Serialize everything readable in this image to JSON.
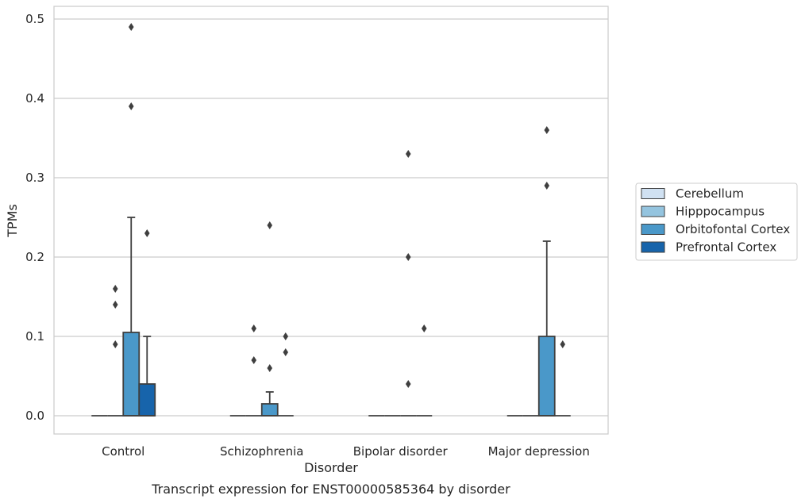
{
  "chart_data": {
    "type": "box",
    "xlabel": "Disorder",
    "ylabel": "TPMs",
    "caption": "Transcript expression for ENST00000585364 by disorder",
    "ylim": [
      -0.024,
      0.515
    ],
    "yticks": [
      "0.0",
      "0.1",
      "0.2",
      "0.3",
      "0.4",
      "0.5"
    ],
    "grid": true,
    "legend_position": "right",
    "categories": [
      "Control",
      "Schizophrenia",
      "Bipolar disorder",
      "Major depression"
    ],
    "series": [
      {
        "name": "Cerebellum",
        "color": "#d0e1f2",
        "boxes": [
          {
            "q1": 0,
            "median": 0,
            "q3": 0,
            "whisker_low": 0,
            "whisker_high": 0,
            "outliers": []
          },
          {
            "q1": 0,
            "median": 0,
            "q3": 0,
            "whisker_low": 0,
            "whisker_high": 0,
            "outliers": []
          },
          {
            "q1": 0,
            "median": 0,
            "q3": 0,
            "whisker_low": 0,
            "whisker_high": 0,
            "outliers": []
          },
          {
            "q1": 0,
            "median": 0,
            "q3": 0,
            "whisker_low": 0,
            "whisker_high": 0,
            "outliers": []
          }
        ]
      },
      {
        "name": "Hipppocampus",
        "color": "#94c4df",
        "boxes": [
          {
            "q1": 0,
            "median": 0,
            "q3": 0,
            "whisker_low": 0,
            "whisker_high": 0,
            "outliers": [
              0.09,
              0.14,
              0.16
            ]
          },
          {
            "q1": 0,
            "median": 0,
            "q3": 0,
            "whisker_low": 0,
            "whisker_high": 0,
            "outliers": [
              0.07,
              0.11
            ]
          },
          {
            "q1": 0,
            "median": 0,
            "q3": 0,
            "whisker_low": 0,
            "whisker_high": 0,
            "outliers": []
          },
          {
            "q1": 0,
            "median": 0,
            "q3": 0,
            "whisker_low": 0,
            "whisker_high": 0,
            "outliers": []
          }
        ]
      },
      {
        "name": "Orbitofontal Cortex",
        "color": "#4a98c9",
        "boxes": [
          {
            "q1": 0,
            "median": 0,
            "q3": 0.105,
            "whisker_low": 0,
            "whisker_high": 0.25,
            "outliers": [
              0.39,
              0.49
            ]
          },
          {
            "q1": 0,
            "median": 0,
            "q3": 0.015,
            "whisker_low": 0,
            "whisker_high": 0.03,
            "outliers": [
              0.06,
              0.24
            ]
          },
          {
            "q1": 0,
            "median": 0,
            "q3": 0,
            "whisker_low": 0,
            "whisker_high": 0,
            "outliers": [
              0.04,
              0.2,
              0.33
            ]
          },
          {
            "q1": 0,
            "median": 0,
            "q3": 0.1,
            "whisker_low": 0,
            "whisker_high": 0.22,
            "outliers": [
              0.29,
              0.36
            ]
          }
        ]
      },
      {
        "name": "Prefrontal Cortex",
        "color": "#1764ab",
        "boxes": [
          {
            "q1": 0,
            "median": 0,
            "q3": 0.04,
            "whisker_low": 0,
            "whisker_high": 0.1,
            "outliers": [
              0.23
            ]
          },
          {
            "q1": 0,
            "median": 0,
            "q3": 0,
            "whisker_low": 0,
            "whisker_high": 0,
            "outliers": [
              0.08,
              0.1
            ]
          },
          {
            "q1": 0,
            "median": 0,
            "q3": 0,
            "whisker_low": 0,
            "whisker_high": 0,
            "outliers": [
              0.11
            ]
          },
          {
            "q1": 0,
            "median": 0,
            "q3": 0,
            "whisker_low": 0,
            "whisker_high": 0,
            "outliers": [
              0.09
            ]
          }
        ]
      }
    ]
  }
}
